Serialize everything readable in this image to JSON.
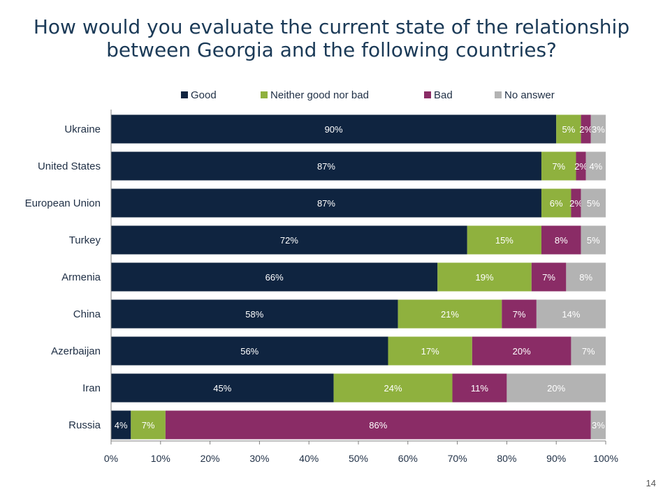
{
  "title_line1": "How would you evaluate the current state of the relationship",
  "title_line2": "between Georgia and the following countries?",
  "page_number": "14",
  "chart_data": {
    "type": "bar",
    "orientation": "horizontal-stacked-100",
    "categories": [
      "Ukraine",
      "United States",
      "European Union",
      "Turkey",
      "Armenia",
      "China",
      "Azerbaijan",
      "Iran",
      "Russia"
    ],
    "series": [
      {
        "name": "Good",
        "color": "#0f2440",
        "label_color": "#ffffff",
        "values": [
          90,
          87,
          87,
          72,
          66,
          58,
          56,
          45,
          4
        ]
      },
      {
        "name": "Neither good nor bad",
        "color": "#8fb13e",
        "label_color": "#ffffff",
        "values": [
          5,
          7,
          6,
          15,
          19,
          21,
          17,
          24,
          7
        ]
      },
      {
        "name": "Bad",
        "color": "#8a2c66",
        "label_color": "#ffffff",
        "values": [
          2,
          2,
          2,
          8,
          7,
          7,
          20,
          11,
          86
        ]
      },
      {
        "name": "No answer",
        "color": "#b3b3b3",
        "label_color": "#ffffff",
        "values": [
          3,
          4,
          5,
          5,
          8,
          14,
          7,
          20,
          3
        ]
      }
    ],
    "xlim": [
      0,
      100
    ],
    "xticks": [
      "0%",
      "10%",
      "20%",
      "30%",
      "40%",
      "50%",
      "60%",
      "70%",
      "80%",
      "90%",
      "100%"
    ],
    "legend_position": "top",
    "grid": false
  }
}
